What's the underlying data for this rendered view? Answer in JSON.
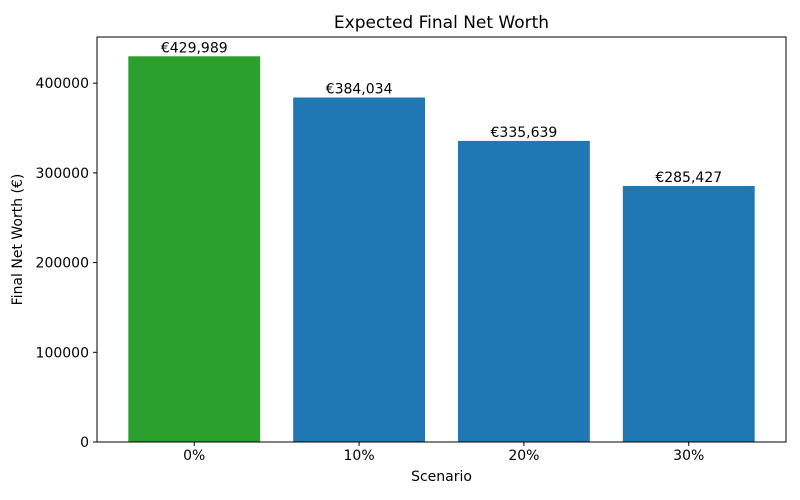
{
  "chart_data": {
    "type": "bar",
    "title": "Expected Final Net Worth",
    "xlabel": "Scenario",
    "ylabel": "Final Net Worth (€)",
    "categories": [
      "0%",
      "10%",
      "20%",
      "30%"
    ],
    "values": [
      429989,
      384034,
      335639,
      285427
    ],
    "bar_labels": [
      "€429,989",
      "€384,034",
      "€335,639",
      "€285,427"
    ],
    "bar_colors": [
      "#2ca02c",
      "#1f77b4",
      "#1f77b4",
      "#1f77b4"
    ],
    "yticks": [
      0,
      100000,
      200000,
      300000,
      400000
    ],
    "ytick_labels": [
      "0",
      "100000",
      "200000",
      "300000",
      "400000"
    ],
    "ylim": [
      0,
      451488
    ],
    "grid": false,
    "legend": null,
    "background": "#ffffff",
    "axis_color": "#000000"
  }
}
